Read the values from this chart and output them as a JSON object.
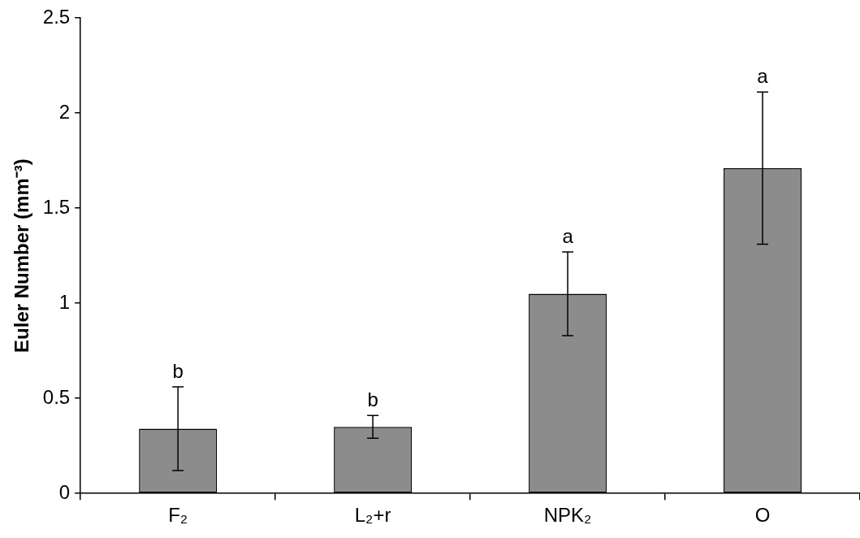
{
  "chart_data": {
    "type": "bar",
    "ylabel": "Euler Number (mm⁻³)",
    "categories": [
      "F₂",
      "L₂+r",
      "NPK₂",
      "O"
    ],
    "values": [
      0.34,
      0.35,
      1.05,
      1.71
    ],
    "errors": [
      0.22,
      0.06,
      0.22,
      0.4
    ],
    "color": "#8c8c8c",
    "ylim": [
      0,
      2.5
    ],
    "yticks": [
      0,
      0.5,
      1,
      1.5,
      2,
      2.5
    ],
    "grid": false,
    "legend": false,
    "annotations": [
      {
        "text": "b",
        "x": "F₂",
        "y": 0.56
      },
      {
        "text": "b",
        "x": "L₂+r",
        "y": 0.41
      },
      {
        "text": "a",
        "x": "NPK₂",
        "y": 1.27
      },
      {
        "text": "a",
        "x": "O",
        "y": 2.11
      }
    ]
  }
}
